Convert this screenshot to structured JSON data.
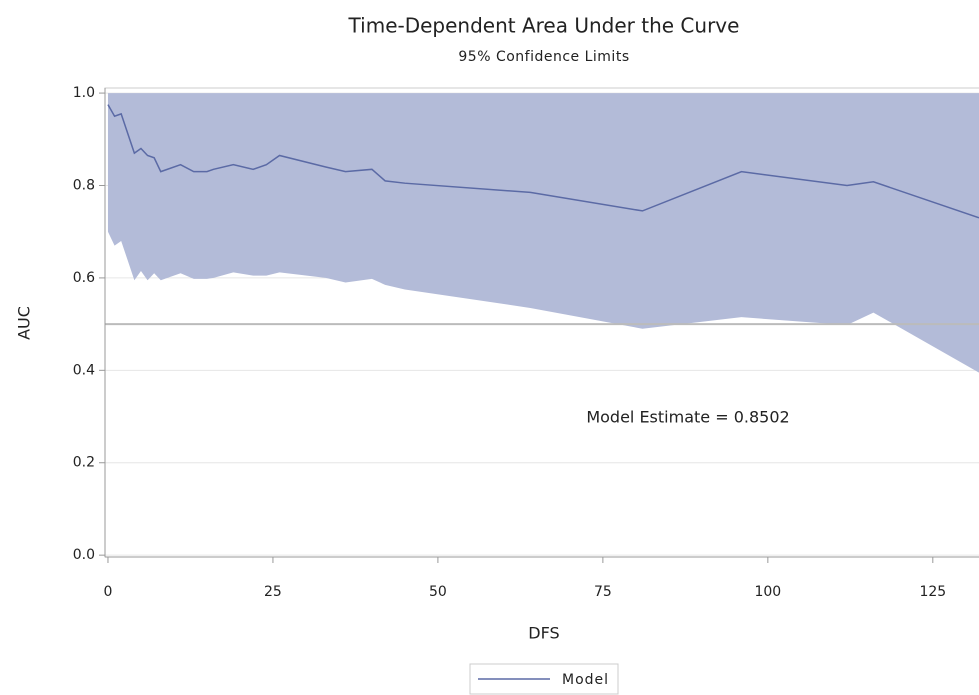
{
  "chart_data": {
    "type": "band-line",
    "title": "Time-Dependent Area Under the Curve",
    "subtitle": "95% Confidence Limits",
    "x_label": "DFS",
    "y_label": "AUC",
    "annotation": "Model Estimate = 0.8502",
    "x": [
      0,
      1,
      2,
      4,
      5,
      6,
      7,
      8,
      11,
      13,
      15,
      16,
      19,
      22,
      24,
      26,
      33,
      36,
      40,
      42,
      45,
      64,
      81,
      96,
      112,
      116,
      132
    ],
    "series": [
      {
        "name": "Model",
        "color": "#5b6aa5",
        "values": [
          0.975,
          0.95,
          0.955,
          0.87,
          0.88,
          0.865,
          0.86,
          0.83,
          0.845,
          0.83,
          0.83,
          0.835,
          0.845,
          0.835,
          0.845,
          0.865,
          0.84,
          0.83,
          0.835,
          0.81,
          0.805,
          0.785,
          0.745,
          0.83,
          0.8,
          0.808,
          0.73
        ]
      }
    ],
    "band": {
      "color": "#b3bbd8",
      "lower": [
        0.7,
        0.67,
        0.68,
        0.595,
        0.615,
        0.595,
        0.61,
        0.595,
        0.61,
        0.598,
        0.598,
        0.6,
        0.612,
        0.605,
        0.605,
        0.612,
        0.6,
        0.59,
        0.598,
        0.585,
        0.575,
        0.535,
        0.49,
        0.515,
        0.498,
        0.525,
        0.395
      ],
      "upper": [
        1,
        1,
        1,
        1,
        1,
        1,
        1,
        1,
        1,
        1,
        1,
        1,
        1,
        1,
        1,
        1,
        1,
        1,
        1,
        1,
        1,
        1,
        1,
        1,
        1,
        1,
        1
      ]
    },
    "reference_line": 0.5,
    "xlim": [
      -0.45,
      132
    ],
    "ylim": [
      -0.004,
      1.011
    ],
    "xticks": [
      0,
      25,
      50,
      75,
      100,
      125
    ],
    "yticks": [
      {
        "value": 0,
        "label": "0.0"
      },
      0.2,
      0.4,
      0.6,
      0.8,
      {
        "value": 1,
        "label": "1.0"
      }
    ],
    "grid": true
  }
}
